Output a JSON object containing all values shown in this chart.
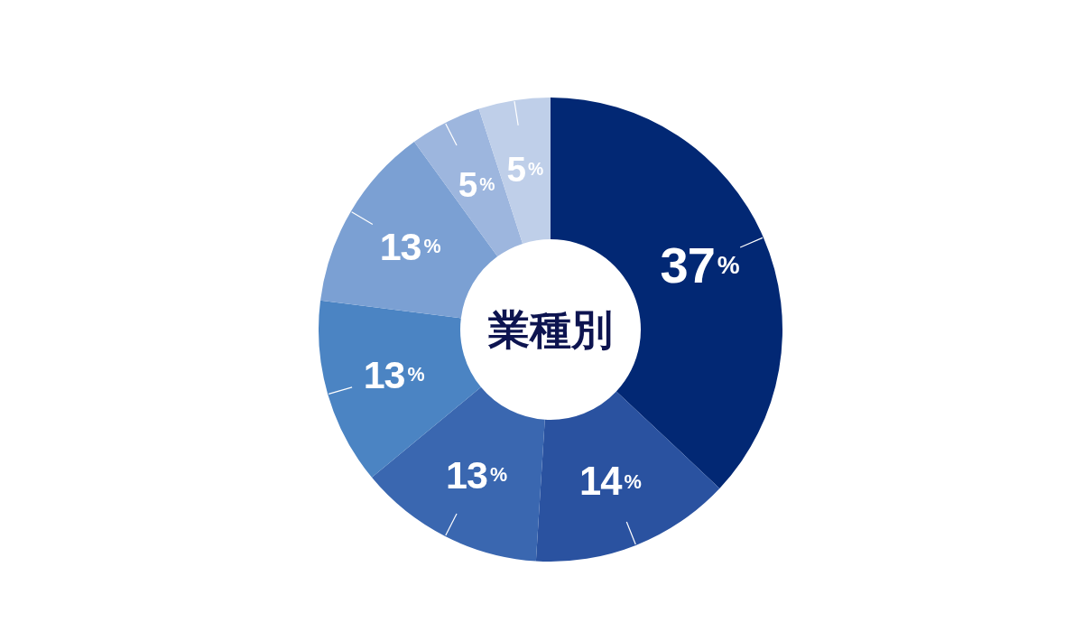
{
  "chart_data": {
    "type": "donut",
    "title": "業種別",
    "categories": [
      null,
      null,
      null,
      null,
      null,
      null,
      null
    ],
    "values": [
      37,
      14,
      13,
      13,
      13,
      5,
      5
    ],
    "colors": [
      "#022874",
      "#2a52a0",
      "#3a67b0",
      "#4b84c3",
      "#7ba0d3",
      "#9db6de",
      "#bfcfe9"
    ],
    "value_labels": [
      "37%",
      "14%",
      "13%",
      "13%",
      "13%",
      "5%",
      "5%"
    ]
  }
}
